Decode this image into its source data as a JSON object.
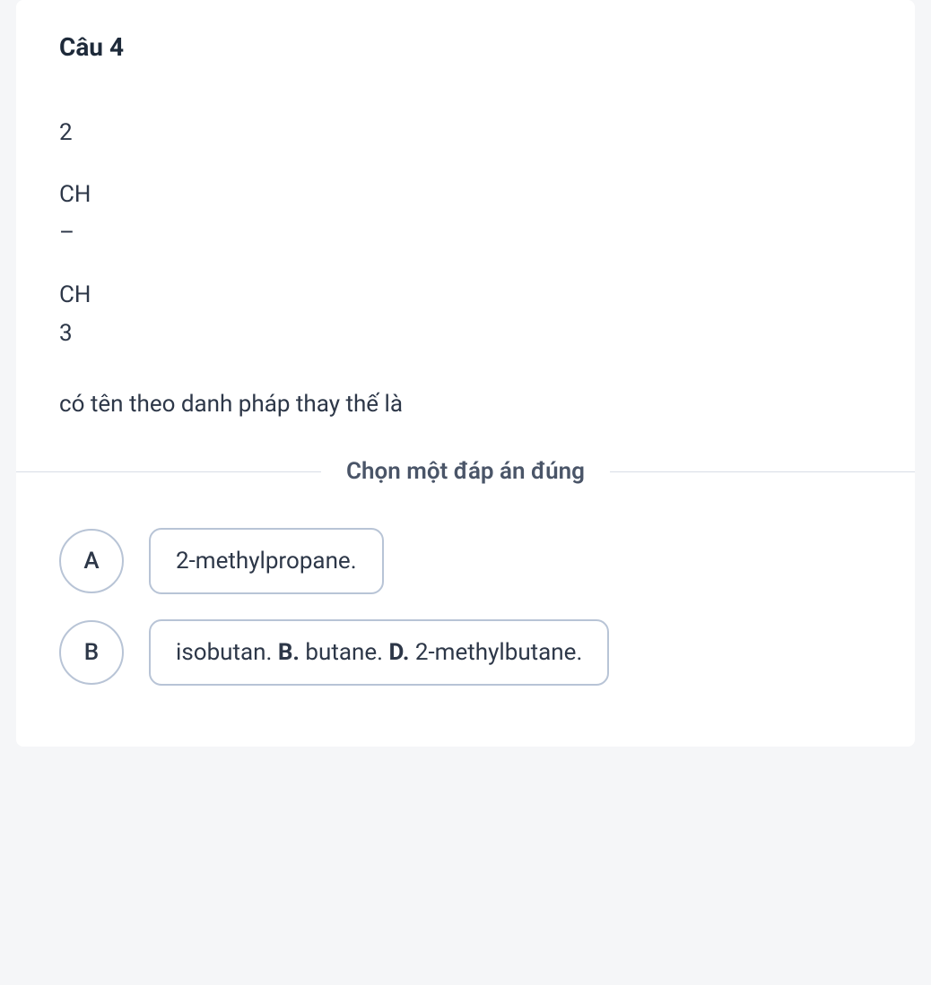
{
  "question": {
    "title": "Câu 4",
    "body_lines": {
      "l1": "2",
      "l2": "CH",
      "l3": "–",
      "l4": "CH",
      "l5": "3",
      "l6": "có tên theo danh pháp thay thế là"
    }
  },
  "instruction": "Chọn một đáp án đúng",
  "answers": {
    "a": {
      "letter": "A",
      "text": "2-methylpropane."
    },
    "b": {
      "letter": "B",
      "parts": {
        "p1": "isobutan. ",
        "b1": "B.",
        "p2": " butane. ",
        "b2": "D.",
        "p3": " 2-methylbutane."
      }
    }
  },
  "colors": {
    "text_primary": "#1e2a3a",
    "text_body": "#2d3748",
    "border": "#b8c4d6",
    "divider": "#d8dde6",
    "bg_page": "#f5f6f8",
    "bg_card": "#ffffff"
  }
}
